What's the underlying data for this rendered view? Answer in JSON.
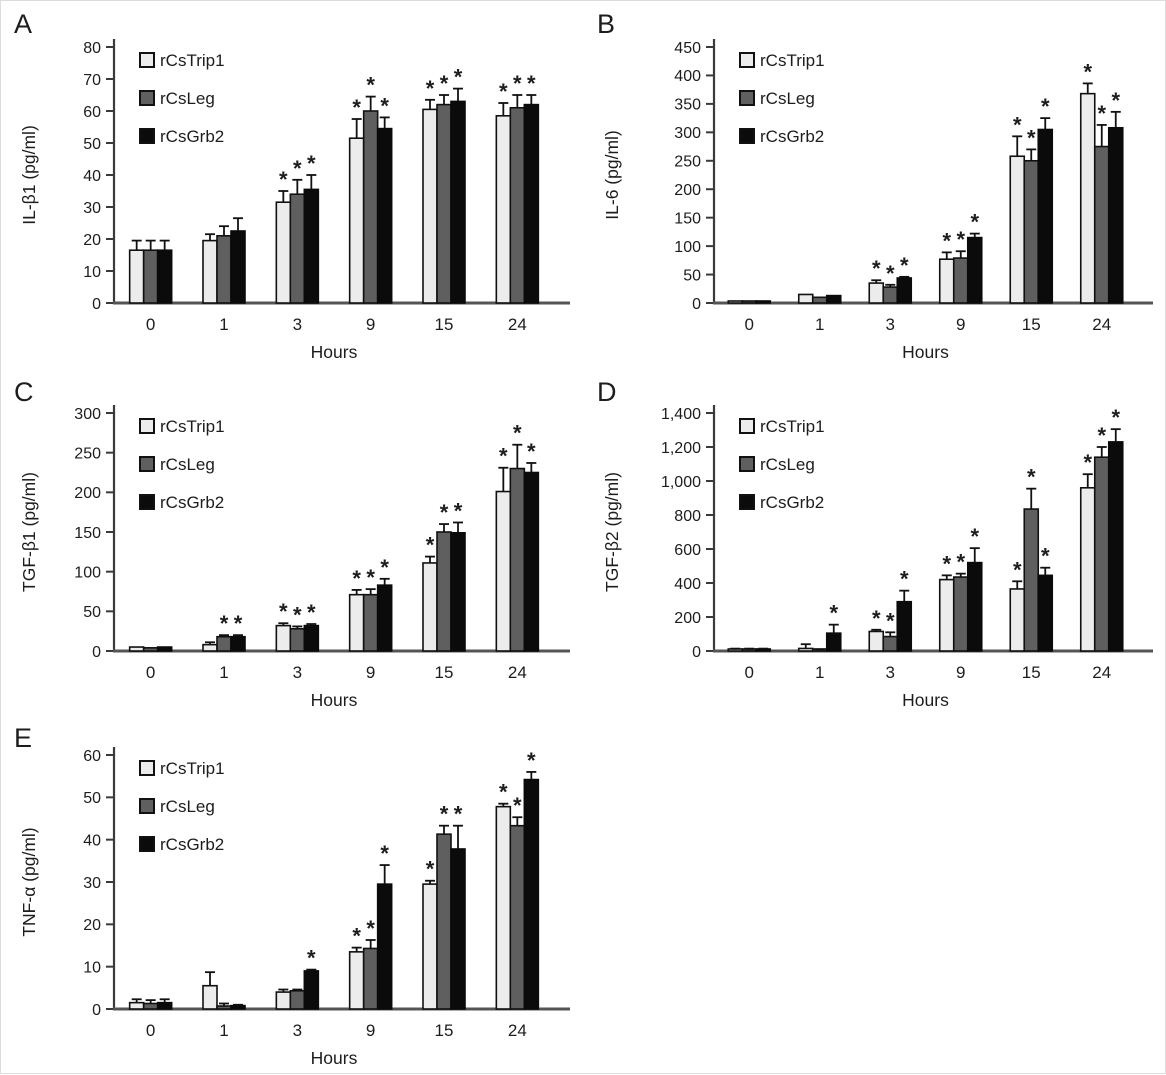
{
  "figure": {
    "sig_marker": "*",
    "axis_color": "#3a3a3a",
    "baseline_color": "#555555",
    "text_color": "#1d1d1d",
    "series_styles": [
      {
        "name": "rCsTrip1",
        "fill": "#ececec",
        "stroke": "#111111"
      },
      {
        "name": "rCsLeg",
        "fill": "#5f5f5f",
        "stroke": "#111111"
      },
      {
        "name": "rCsGrb2",
        "fill": "#0b0b0b",
        "stroke": "#0b0b0b"
      }
    ]
  },
  "chart_data": [
    {
      "type": "bar",
      "panel": "A",
      "title": "",
      "xlabel": "Hours",
      "ylabel": "IL-β1 (pg/ml)",
      "ylim": [
        0,
        80
      ],
      "ytick_step": 10,
      "grid": false,
      "legend_position": "top-left-inside",
      "categories": [
        "0",
        "1",
        "3",
        "9",
        "15",
        "24"
      ],
      "series": [
        {
          "name": "rCsTrip1",
          "values": [
            16.5,
            19.5,
            31.5,
            51.5,
            60.5,
            58.5
          ],
          "errors": [
            3,
            2,
            3.5,
            6,
            3,
            4
          ],
          "significant": [
            false,
            false,
            true,
            true,
            true,
            true
          ]
        },
        {
          "name": "rCsLeg",
          "values": [
            16.5,
            21,
            34,
            60,
            62,
            61
          ],
          "errors": [
            3,
            3,
            4.5,
            4.5,
            3,
            4
          ],
          "significant": [
            false,
            false,
            true,
            true,
            true,
            true
          ]
        },
        {
          "name": "rCsGrb2",
          "values": [
            16.5,
            22.5,
            35.5,
            54.5,
            63,
            62
          ],
          "errors": [
            3,
            4,
            4.5,
            3.5,
            4,
            3
          ],
          "significant": [
            false,
            false,
            true,
            true,
            true,
            true
          ]
        }
      ]
    },
    {
      "type": "bar",
      "panel": "B",
      "title": "",
      "xlabel": "Hours",
      "ylabel": "IL-6 (pg/ml)",
      "ylim": [
        0,
        450
      ],
      "ytick_step": 50,
      "grid": false,
      "legend_position": "top-left-inside",
      "categories": [
        "0",
        "1",
        "3",
        "9",
        "15",
        "24"
      ],
      "series": [
        {
          "name": "rCsTrip1",
          "values": [
            3,
            15,
            35,
            77,
            258,
            368
          ],
          "errors": [
            0,
            0,
            5,
            12,
            35,
            18
          ],
          "significant": [
            false,
            false,
            true,
            true,
            true,
            true
          ]
        },
        {
          "name": "rCsLeg",
          "values": [
            3,
            10,
            28,
            79,
            250,
            275
          ],
          "errors": [
            0,
            0,
            4,
            12,
            20,
            38
          ],
          "significant": [
            false,
            false,
            true,
            true,
            true,
            true
          ]
        },
        {
          "name": "rCsGrb2",
          "values": [
            3,
            13,
            44,
            115,
            305,
            308
          ],
          "errors": [
            0,
            0,
            2,
            7,
            20,
            28
          ],
          "significant": [
            false,
            false,
            true,
            true,
            true,
            true
          ]
        }
      ]
    },
    {
      "type": "bar",
      "panel": "C",
      "title": "",
      "xlabel": "Hours",
      "ylabel": "TGF-β1 (pg/ml)",
      "ylim": [
        0,
        300
      ],
      "ytick_step": 50,
      "grid": false,
      "legend_position": "top-left-inside",
      "categories": [
        "0",
        "1",
        "3",
        "9",
        "15",
        "24"
      ],
      "series": [
        {
          "name": "rCsTrip1",
          "values": [
            5,
            8,
            32,
            71,
            111,
            201
          ],
          "errors": [
            0,
            3,
            3,
            6,
            8,
            30
          ],
          "significant": [
            false,
            false,
            true,
            true,
            true,
            true
          ]
        },
        {
          "name": "rCsLeg",
          "values": [
            4,
            18,
            28,
            71,
            150,
            230
          ],
          "errors": [
            0,
            2,
            3,
            7,
            10,
            30
          ],
          "significant": [
            false,
            true,
            true,
            true,
            true,
            true
          ]
        },
        {
          "name": "rCsGrb2",
          "values": [
            5,
            18,
            32,
            83,
            149,
            225
          ],
          "errors": [
            0,
            2,
            2,
            8,
            13,
            12
          ],
          "significant": [
            false,
            true,
            true,
            true,
            true,
            true
          ]
        }
      ]
    },
    {
      "type": "bar",
      "panel": "D",
      "title": "",
      "xlabel": "Hours",
      "ylabel": "TGF-β2 (pg/ml)",
      "ylim": [
        0,
        1400
      ],
      "ytick_step": 200,
      "grid": false,
      "legend_position": "top-left-inside",
      "categories": [
        "0",
        "1",
        "3",
        "9",
        "15",
        "24"
      ],
      "series": [
        {
          "name": "rCsTrip1",
          "values": [
            8,
            15,
            115,
            420,
            365,
            960
          ],
          "errors": [
            6,
            25,
            10,
            25,
            45,
            80
          ],
          "significant": [
            false,
            false,
            true,
            true,
            true,
            true
          ]
        },
        {
          "name": "rCsLeg",
          "values": [
            8,
            5,
            85,
            435,
            835,
            1140
          ],
          "errors": [
            6,
            5,
            25,
            20,
            120,
            60
          ],
          "significant": [
            false,
            false,
            true,
            true,
            true,
            true
          ]
        },
        {
          "name": "rCsGrb2",
          "values": [
            8,
            105,
            290,
            520,
            445,
            1230
          ],
          "errors": [
            6,
            50,
            65,
            85,
            45,
            75
          ],
          "significant": [
            false,
            true,
            true,
            true,
            true,
            true
          ]
        }
      ]
    },
    {
      "type": "bar",
      "panel": "E",
      "title": "",
      "xlabel": "Hours",
      "ylabel": "TNF-α (pg/ml)",
      "ylim": [
        0,
        60
      ],
      "ytick_step": 10,
      "grid": false,
      "legend_position": "top-left-inside",
      "categories": [
        "0",
        "1",
        "3",
        "9",
        "15",
        "24"
      ],
      "series": [
        {
          "name": "rCsTrip1",
          "values": [
            1.5,
            5.5,
            4,
            13.5,
            29.5,
            47.8
          ],
          "errors": [
            0.8,
            3.2,
            0.6,
            1,
            0.8,
            0.7
          ],
          "significant": [
            false,
            false,
            false,
            true,
            true,
            true
          ]
        },
        {
          "name": "rCsLeg",
          "values": [
            1.3,
            0.7,
            4.3,
            14.3,
            41.3,
            43.3
          ],
          "errors": [
            0.8,
            0.6,
            0.3,
            2,
            2,
            2
          ],
          "significant": [
            false,
            false,
            false,
            true,
            true,
            true
          ]
        },
        {
          "name": "rCsGrb2",
          "values": [
            1.5,
            0.8,
            9,
            29.5,
            37.8,
            54.2
          ],
          "errors": [
            0.8,
            0.2,
            0.3,
            4.5,
            5.5,
            1.8
          ],
          "significant": [
            false,
            false,
            true,
            true,
            true,
            true
          ]
        }
      ]
    }
  ]
}
